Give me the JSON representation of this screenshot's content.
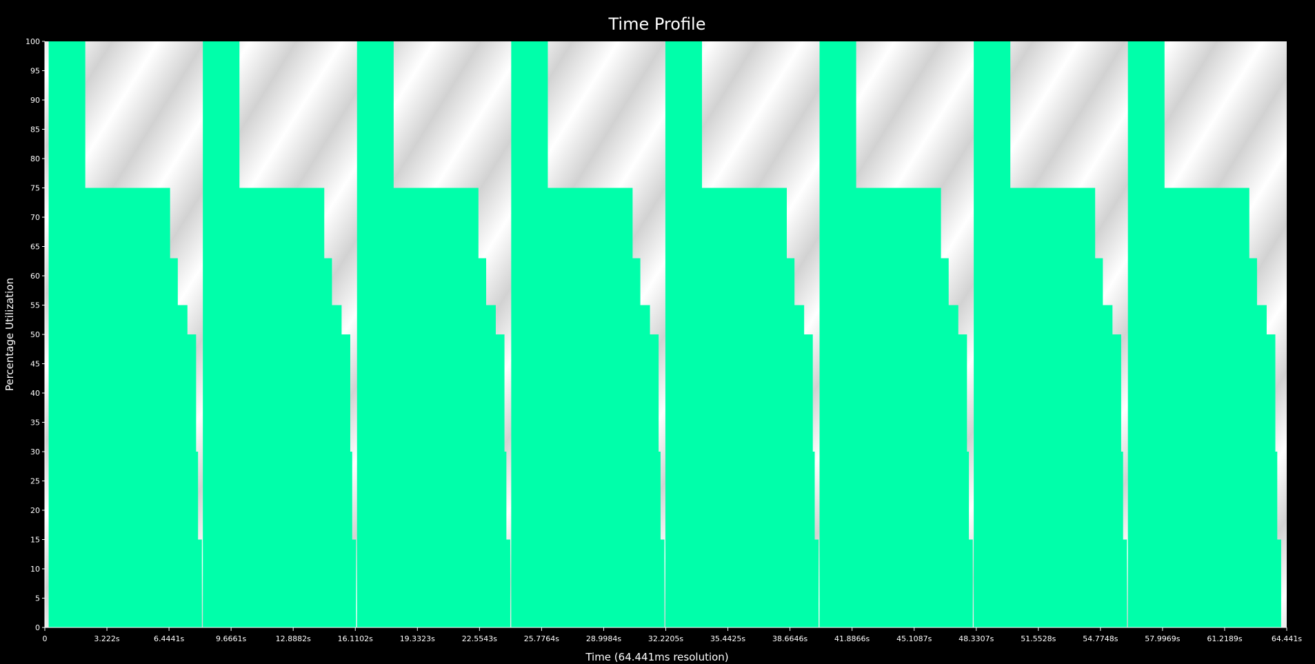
{
  "chart_data": {
    "type": "area",
    "title": "Time Profile",
    "xlabel": "Time (64.441ms resolution)",
    "ylabel": "Percentage Utilization",
    "xlim": [
      0,
      64.441
    ],
    "ylim": [
      0,
      100
    ],
    "y_ticks": [
      0,
      5,
      10,
      15,
      20,
      25,
      30,
      35,
      40,
      45,
      50,
      55,
      60,
      65,
      70,
      75,
      80,
      85,
      90,
      95,
      100
    ],
    "x_ticks": [
      {
        "value": 0,
        "label": "0"
      },
      {
        "value": 3.222,
        "label": "3.222s"
      },
      {
        "value": 6.4441,
        "label": "6.4441s"
      },
      {
        "value": 9.6661,
        "label": "9.6661s"
      },
      {
        "value": 12.8882,
        "label": "12.8882s"
      },
      {
        "value": 16.1102,
        "label": "16.1102s"
      },
      {
        "value": 19.3323,
        "label": "19.3323s"
      },
      {
        "value": 22.5543,
        "label": "22.5543s"
      },
      {
        "value": 25.7764,
        "label": "25.7764s"
      },
      {
        "value": 28.9984,
        "label": "28.9984s"
      },
      {
        "value": 32.2205,
        "label": "32.2205s"
      },
      {
        "value": 35.4425,
        "label": "35.4425s"
      },
      {
        "value": 38.6646,
        "label": "38.6646s"
      },
      {
        "value": 41.8866,
        "label": "41.8866s"
      },
      {
        "value": 45.1087,
        "label": "45.1087s"
      },
      {
        "value": 48.3307,
        "label": "48.3307s"
      },
      {
        "value": 51.5528,
        "label": "51.5528s"
      },
      {
        "value": 54.7748,
        "label": "54.7748s"
      },
      {
        "value": 57.9969,
        "label": "57.9969s"
      },
      {
        "value": 61.2189,
        "label": "61.2189s"
      },
      {
        "value": 64.441,
        "label": "64.441s"
      }
    ],
    "series": [
      {
        "name": "Utilization",
        "color": "#00ffaa",
        "cycle_count": 8,
        "cycle_start_times": [
          0.2,
          8.2,
          16.2,
          24.2,
          32.2,
          40.2,
          48.2,
          56.2
        ],
        "cycle_profile": [
          {
            "t": 0.0,
            "v": 100
          },
          {
            "t": 1.7,
            "v": 100
          },
          {
            "t": 1.9,
            "v": 75
          },
          {
            "t": 6.0,
            "v": 75
          },
          {
            "t": 6.3,
            "v": 63
          },
          {
            "t": 6.7,
            "v": 55
          },
          {
            "t": 7.2,
            "v": 50
          },
          {
            "t": 7.55,
            "v": 50
          },
          {
            "t": 7.65,
            "v": 30
          },
          {
            "t": 7.75,
            "v": 15
          },
          {
            "t": 7.95,
            "v": 0
          }
        ]
      }
    ],
    "colors": {
      "fill": "#00ffaa",
      "background": "#000000",
      "plot_light": "#ffffff",
      "plot_dark": "#d6d6d6",
      "text": "#ffffff"
    }
  }
}
